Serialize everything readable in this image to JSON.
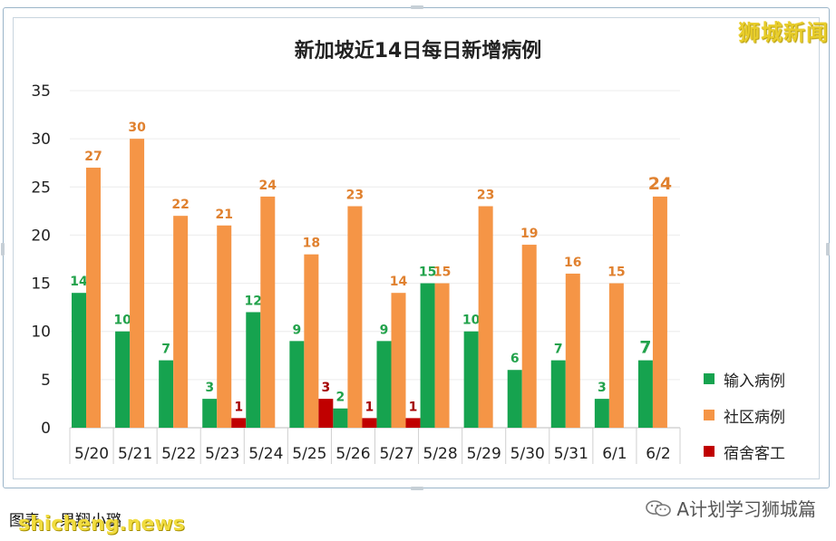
{
  "brand": "狮城新闻",
  "footer": {
    "caption_a": "图表",
    "caption_b": "果翔小璐",
    "watermark": "shicheng.news",
    "wechat_label": "A计划学习狮城篇"
  },
  "colors": {
    "imported": "#16a34f",
    "community": "#f59546",
    "dormitory": "#c00000",
    "imported_label": "#22a24b",
    "community_label": "#e0812f",
    "dormitory_label": "#a40000"
  },
  "chart_data": {
    "type": "bar",
    "title": "新加坡近14日每日新增病例",
    "categories": [
      "5/20",
      "5/21",
      "5/22",
      "5/23",
      "5/24",
      "5/25",
      "5/26",
      "5/27",
      "5/28",
      "5/29",
      "5/30",
      "5/31",
      "6/1",
      "6/2"
    ],
    "series": [
      {
        "name": "输入病例",
        "values": [
          14,
          10,
          7,
          3,
          12,
          9,
          2,
          9,
          15,
          10,
          6,
          7,
          3,
          7
        ]
      },
      {
        "name": "社区病例",
        "values": [
          27,
          30,
          22,
          21,
          24,
          18,
          23,
          14,
          15,
          23,
          19,
          16,
          15,
          24
        ]
      },
      {
        "name": "宿舍客工",
        "values": [
          0,
          0,
          0,
          1,
          0,
          3,
          1,
          1,
          0,
          0,
          0,
          0,
          0,
          0
        ]
      }
    ],
    "ylim": [
      0,
      35
    ],
    "yticks": [
      0,
      5,
      10,
      15,
      20,
      25,
      30,
      35
    ],
    "grid": true,
    "legend": "right"
  }
}
